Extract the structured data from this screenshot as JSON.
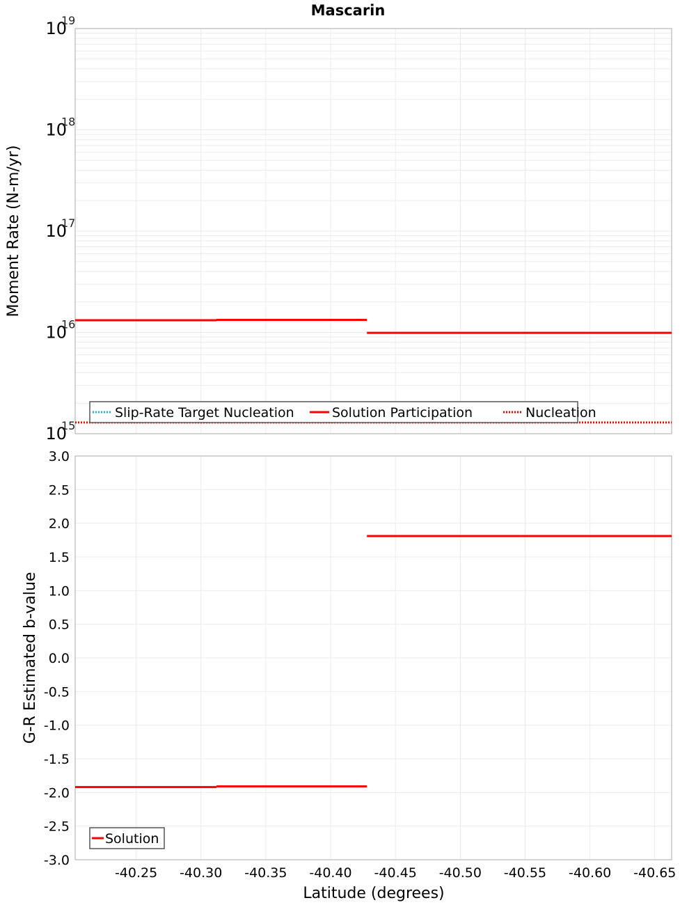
{
  "title": "Mascarin",
  "chart_data": [
    {
      "type": "line",
      "title": "Mascarin",
      "xlabel": "Latitude (degrees)",
      "ylabel": "Moment Rate (N-m/yr)",
      "yscale": "log",
      "ylim": [
        1000000000000000.0,
        1e+19
      ],
      "xlim": [
        -40.203,
        -40.663
      ],
      "x_reversed_axis_values": true,
      "y_tick_labels": [
        {
          "base": "10",
          "exp": "15",
          "value": 1000000000000000.0
        },
        {
          "base": "10",
          "exp": "16",
          "value": 1e+16
        },
        {
          "base": "10",
          "exp": "17",
          "value": 1e+17
        },
        {
          "base": "10",
          "exp": "18",
          "value": 1e+18
        },
        {
          "base": "10",
          "exp": "19",
          "value": 1e+19
        }
      ],
      "grid": true,
      "legend_position": "lower-left",
      "series": [
        {
          "name": "Slip-Rate Target Nucleation",
          "style": "dotted",
          "color": "#1fb5c4",
          "points": []
        },
        {
          "name": "Solution Participation",
          "style": "solid",
          "color": "#ff0000",
          "segments": [
            {
              "x": [
                -40.203,
                -40.312
              ],
              "y": 1.32e+16
            },
            {
              "x": [
                -40.312,
                -40.428
              ],
              "y": 1.33e+16
            },
            {
              "x": [
                -40.428,
                -40.547
              ],
              "y": 9900000000000000.0
            },
            {
              "x": [
                -40.547,
                -40.663
              ],
              "y": 9900000000000000.0
            }
          ]
        },
        {
          "name": "Nucleation",
          "style": "dotted",
          "color": "#ff0000",
          "segments": [
            {
              "x": [
                -40.203,
                -40.663
              ],
              "y": 1290000000000000.0
            }
          ]
        }
      ]
    },
    {
      "type": "line",
      "title": "",
      "xlabel": "Latitude (degrees)",
      "ylabel": "G-R Estimated b-value",
      "ylim": [
        -3.0,
        3.0
      ],
      "xlim": [
        -40.203,
        -40.663
      ],
      "y_ticks": [
        "3.0",
        "2.5",
        "2.0",
        "1.5",
        "1.0",
        "0.5",
        "0.0",
        "-0.5",
        "-1.0",
        "-1.5",
        "-2.0",
        "-2.5",
        "-3.0"
      ],
      "x_ticks": [
        "-40.25",
        "-40.30",
        "-40.35",
        "-40.40",
        "-40.45",
        "-40.50",
        "-40.55",
        "-40.60",
        "-40.65"
      ],
      "grid": true,
      "legend_position": "lower-left",
      "series": [
        {
          "name": "Solution",
          "style": "solid",
          "color": "#ff0000",
          "segments": [
            {
              "x": [
                -40.203,
                -40.312
              ],
              "y": -1.92
            },
            {
              "x": [
                -40.312,
                -40.428
              ],
              "y": -1.91
            },
            {
              "x": [
                -40.428,
                -40.547
              ],
              "y": 1.81
            },
            {
              "x": [
                -40.547,
                -40.663
              ],
              "y": 1.81
            }
          ]
        }
      ]
    }
  ]
}
